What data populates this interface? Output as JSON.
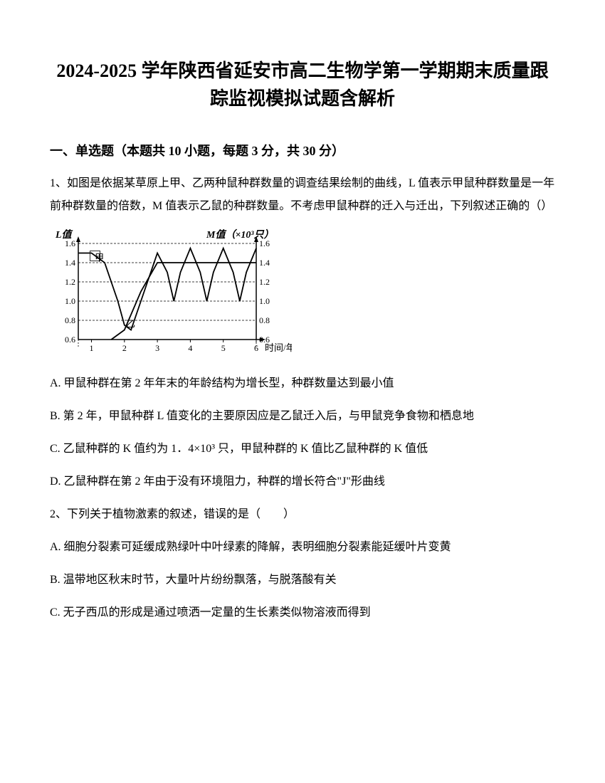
{
  "title": "2024-2025 学年陕西省延安市高二生物学第一学期期末质量跟踪监视模拟试题含解析",
  "section_heading": "一、单选题（本题共 10 小题，每题 3 分，共 30 分）",
  "q1": {
    "stem": "1、如图是依据某草原上甲、乙两种鼠种群数量的调查结果绘制的曲线，L 值表示甲鼠种群数量是一年前种群数量的倍数，M 值表示乙鼠的种群数量。不考虑甲鼠种群的迁入与迁出，下列叙述正确的（）",
    "optA": "A. 甲鼠种群在第 2 年年末的年龄结构为增长型，种群数量达到最小值",
    "optB": "B. 第 2 年，甲鼠种群 L 值变化的主要原因应是乙鼠迁入后，与甲鼠竞争食物和栖息地",
    "optC": "C. 乙鼠种群的 K 值约为 1．4×10³ 只，甲鼠种群的 K 值比乙鼠种群的 K 值低",
    "optD": "D. 乙鼠种群在第 2 年由于没有环境阻力，种群的增长符合\"J\"形曲线"
  },
  "q2": {
    "stem": "2、下列关于植物激素的叙述，错误的是（　　）",
    "optA": "A. 细胞分裂素可延缓成熟绿叶中叶绿素的降解，表明细胞分裂素能延缓叶片变黄",
    "optB": "B. 温带地区秋末时节，大量叶片纷纷飘落，与脱落酸有关",
    "optC": "C. 无子西瓜的形成是通过喷洒一定量的生长素类似物溶液而得到"
  },
  "chart": {
    "left_label": "L值",
    "right_label": "M值（×10³只）",
    "x_label": "时间/年",
    "series_jia": "甲",
    "series_yi": "乙",
    "x_ticks": [
      1,
      2,
      3,
      4,
      5,
      6
    ],
    "y_ticks": [
      0.6,
      0.8,
      1.0,
      1.2,
      1.4,
      1.6
    ],
    "y_min": 0.6,
    "y_max": 1.6,
    "plot_bg": "#ffffff",
    "line_color": "#000000",
    "grid_color": "#000000",
    "jia_points": [
      [
        0.6,
        1.5
      ],
      [
        1,
        1.5
      ],
      [
        1.4,
        1.4
      ],
      [
        1.8,
        1.0
      ],
      [
        2,
        0.75
      ],
      [
        2.2,
        0.7
      ],
      [
        2.5,
        1.0
      ],
      [
        3,
        1.5
      ],
      [
        3.3,
        1.3
      ],
      [
        3.5,
        1.0
      ],
      [
        3.7,
        1.3
      ],
      [
        4,
        1.55
      ],
      [
        4.3,
        1.3
      ],
      [
        4.5,
        1.0
      ],
      [
        4.7,
        1.3
      ],
      [
        5,
        1.55
      ],
      [
        5.3,
        1.3
      ],
      [
        5.5,
        1.0
      ],
      [
        5.7,
        1.3
      ],
      [
        6,
        1.55
      ]
    ],
    "yi_points": [
      [
        1.6,
        0.6
      ],
      [
        2,
        0.7
      ],
      [
        2.5,
        1.1
      ],
      [
        3,
        1.4
      ],
      [
        3.5,
        1.4
      ],
      [
        4,
        1.4
      ],
      [
        4.5,
        1.4
      ],
      [
        5,
        1.4
      ],
      [
        5.5,
        1.4
      ],
      [
        6,
        1.4
      ]
    ]
  }
}
